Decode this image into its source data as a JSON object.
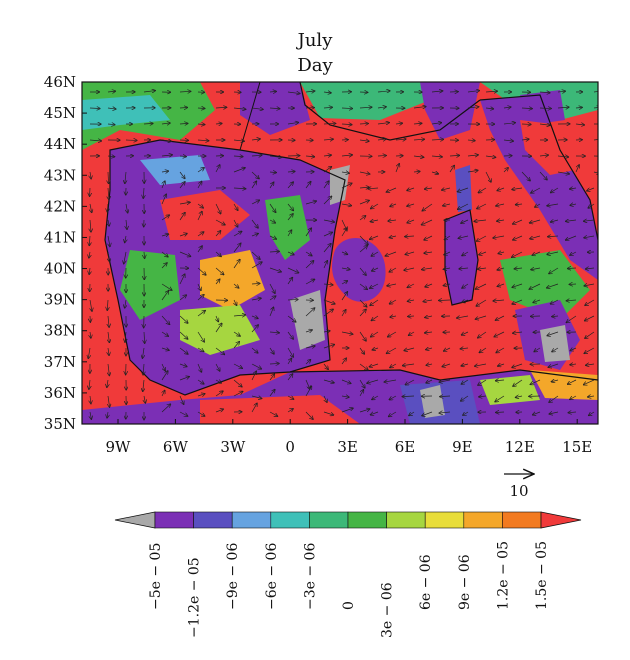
{
  "title_line1": "July",
  "title_line2": "Day",
  "lat_ticks": [
    "46N",
    "45N",
    "44N",
    "43N",
    "42N",
    "41N",
    "40N",
    "39N",
    "38N",
    "37N",
    "36N",
    "35N"
  ],
  "lon_ticks": [
    "9W",
    "6W",
    "3W",
    "0",
    "3E",
    "6E",
    "9E",
    "12E",
    "15E"
  ],
  "vector_reference": {
    "label": "10"
  },
  "colorbar": {
    "labels": [
      "−5e − 05",
      "−1.2e − 05",
      "−9e − 06",
      "−6e − 06",
      "−3e − 06",
      "0",
      "3e − 06",
      "6e − 06",
      "9e − 06",
      "1.2e − 05",
      "1.5e − 05"
    ],
    "colors": [
      "#a9a9a9",
      "#7b2fb5",
      "#5a4fc0",
      "#66a3e0",
      "#3fc0b8",
      "#3cb878",
      "#45b545",
      "#a6d640",
      "#e8dd3a",
      "#f4a72a",
      "#f27a20",
      "#f03a3a"
    ],
    "label_offsets": [
      "up",
      "down",
      "up",
      "up",
      "up",
      "up",
      "down",
      "up",
      "up",
      "up",
      "up"
    ]
  },
  "legend": {
    "regions": [
      {
        "name": "region-north-france",
        "color": "#f03a3a"
      },
      {
        "name": "region-iberia",
        "color": "#7b2fb5"
      },
      {
        "name": "region-sea",
        "color": "#f03a3a"
      }
    ]
  }
}
